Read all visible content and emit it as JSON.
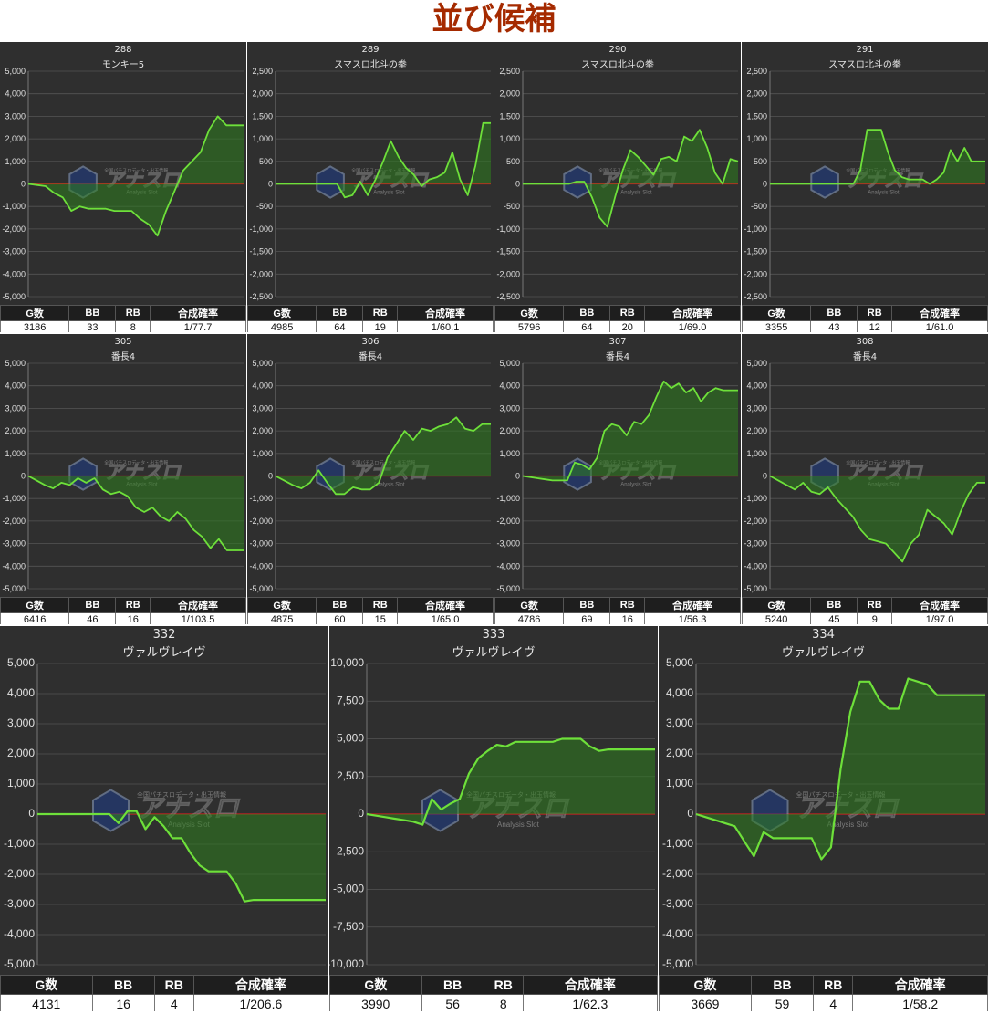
{
  "page": {
    "title": "並び候補"
  },
  "watermark": {
    "main": "アナスロ",
    "tagline": "全国パチスロデータ・出玉情報",
    "sub": "Analysis Slot"
  },
  "stat_headers": [
    "G数",
    "BB",
    "RB",
    "合成確率"
  ],
  "colors": {
    "panel_bg": "#2f2f2f",
    "line": "#6ee03a",
    "fill": "#2e7d1e",
    "zero_line": "#cc2222",
    "grid": "#555555",
    "title": "#a52a00"
  },
  "panels": [
    {
      "machine_no": "288",
      "machine_name": "モンキー5",
      "stats": {
        "games": "3186",
        "bb": "33",
        "rb": "8",
        "rate": "1/77.7"
      },
      "chart_data": {
        "type": "area",
        "ylim": [
          -5000,
          5000
        ],
        "yticks": [
          "5,000",
          "4,000",
          "3,000",
          "2,000",
          "1,000",
          "0",
          "-1,000",
          "-2,000",
          "-3,000",
          "-4,000",
          "-5,000"
        ],
        "series": [
          {
            "values": [
              0,
              -50,
              -100,
              -400,
              -600,
              -1200,
              -1000,
              -1100,
              -1100,
              -1100,
              -1200,
              -1200,
              -1200,
              -1550,
              -1800,
              -2300,
              -1200,
              -300,
              600,
              1000,
              1400,
              2400,
              3000,
              2600,
              2600,
              2600
            ]
          }
        ]
      }
    },
    {
      "machine_no": "289",
      "machine_name": "スマスロ北斗の拳",
      "stats": {
        "games": "4985",
        "bb": "64",
        "rb": "19",
        "rate": "1/60.1"
      },
      "chart_data": {
        "type": "area",
        "ylim": [
          -2500,
          2500
        ],
        "yticks": [
          "2,500",
          "2,000",
          "1,500",
          "1,000",
          "500",
          "0",
          "-500",
          "-1,000",
          "-1,500",
          "-2,000",
          "-2,500"
        ],
        "series": [
          {
            "values": [
              0,
              0,
              0,
              0,
              0,
              0,
              0,
              0,
              0,
              -300,
              -250,
              50,
              -250,
              100,
              500,
              950,
              600,
              350,
              200,
              -50,
              100,
              150,
              250,
              700,
              100,
              -250,
              400,
              1350,
              1350
            ]
          }
        ]
      }
    },
    {
      "machine_no": "290",
      "machine_name": "スマスロ北斗の拳",
      "stats": {
        "games": "5796",
        "bb": "64",
        "rb": "20",
        "rate": "1/69.0"
      },
      "chart_data": {
        "type": "area",
        "ylim": [
          -2500,
          2500
        ],
        "yticks": [
          "2,500",
          "2,000",
          "1,500",
          "1,000",
          "500",
          "0",
          "-500",
          "-1,000",
          "-1,500",
          "-2,000",
          "-2,500"
        ],
        "series": [
          {
            "values": [
              0,
              0,
              0,
              0,
              0,
              0,
              0,
              50,
              50,
              -300,
              -750,
              -950,
              -300,
              300,
              750,
              600,
              400,
              200,
              550,
              600,
              500,
              1050,
              950,
              1200,
              800,
              250,
              0,
              550,
              500
            ]
          }
        ]
      }
    },
    {
      "machine_no": "291",
      "machine_name": "スマスロ北斗の拳",
      "stats": {
        "games": "3355",
        "bb": "43",
        "rb": "12",
        "rate": "1/61.0"
      },
      "chart_data": {
        "type": "area",
        "ylim": [
          -2500,
          2500
        ],
        "yticks": [
          "2,500",
          "2,000",
          "1,500",
          "1,000",
          "500",
          "0",
          "-500",
          "-1,000",
          "-1,500",
          "-2,000",
          "-2,500"
        ],
        "series": [
          {
            "values": [
              0,
              0,
              0,
              0,
              0,
              0,
              0,
              0,
              0,
              0,
              0,
              0,
              0,
              300,
              1200,
              1200,
              1200,
              700,
              300,
              150,
              100,
              100,
              100,
              0,
              100,
              250,
              750,
              500,
              800,
              500,
              500,
              500
            ]
          }
        ]
      }
    },
    {
      "machine_no": "305",
      "machine_name": "番長4",
      "stats": {
        "games": "6416",
        "bb": "46",
        "rb": "16",
        "rate": "1/103.5"
      },
      "chart_data": {
        "type": "area",
        "ylim": [
          -5000,
          5000
        ],
        "yticks": [
          "5,000",
          "4,000",
          "3,000",
          "2,000",
          "1,000",
          "0",
          "-1,000",
          "-2,000",
          "-3,000",
          "-4,000",
          "-5,000"
        ],
        "series": [
          {
            "values": [
              0,
              -200,
              -400,
              -550,
              -300,
              -400,
              -100,
              -300,
              -100,
              -600,
              -800,
              -700,
              -900,
              -1400,
              -1600,
              -1400,
              -1800,
              -2000,
              -1600,
              -1900,
              -2400,
              -2700,
              -3200,
              -2800,
              -3300,
              -3300,
              -3300
            ]
          }
        ]
      }
    },
    {
      "machine_no": "306",
      "machine_name": "番長4",
      "stats": {
        "games": "4875",
        "bb": "60",
        "rb": "15",
        "rate": "1/65.0"
      },
      "chart_data": {
        "type": "area",
        "ylim": [
          -5000,
          5000
        ],
        "yticks": [
          "5,000",
          "4,000",
          "3,000",
          "2,000",
          "1,000",
          "0",
          "-1,000",
          "-2,000",
          "-3,000",
          "-4,000",
          "-5,000"
        ],
        "series": [
          {
            "values": [
              0,
              -200,
              -400,
              -550,
              -300,
              250,
              -300,
              -800,
              -800,
              -500,
              -600,
              -600,
              -300,
              800,
              1400,
              2000,
              1600,
              2100,
              2000,
              2200,
              2300,
              2600,
              2100,
              2000,
              2300,
              2300
            ]
          }
        ]
      }
    },
    {
      "machine_no": "307",
      "machine_name": "番長4",
      "stats": {
        "games": "4786",
        "bb": "69",
        "rb": "16",
        "rate": "1/56.3"
      },
      "chart_data": {
        "type": "area",
        "ylim": [
          -5000,
          5000
        ],
        "yticks": [
          "5,000",
          "4,000",
          "3,000",
          "2,000",
          "1,000",
          "0",
          "-1,000",
          "-2,000",
          "-3,000",
          "-4,000",
          "-5,000"
        ],
        "series": [
          {
            "values": [
              0,
              -50,
              -100,
              -150,
              -200,
              -200,
              -200,
              600,
              500,
              300,
              800,
              2000,
              2300,
              2200,
              1800,
              2400,
              2300,
              2700,
              3500,
              4200,
              3900,
              4100,
              3700,
              3900,
              3300,
              3700,
              3900,
              3800,
              3800,
              3800
            ]
          }
        ]
      }
    },
    {
      "machine_no": "308",
      "machine_name": "番長4",
      "stats": {
        "games": "5240",
        "bb": "45",
        "rb": "9",
        "rate": "1/97.0"
      },
      "chart_data": {
        "type": "area",
        "ylim": [
          -5000,
          5000
        ],
        "yticks": [
          "5,000",
          "4,000",
          "3,000",
          "2,000",
          "1,000",
          "0",
          "-1,000",
          "-2,000",
          "-3,000",
          "-4,000",
          "-5,000"
        ],
        "series": [
          {
            "values": [
              0,
              -200,
              -400,
              -600,
              -300,
              -700,
              -800,
              -500,
              -1000,
              -1400,
              -1800,
              -2400,
              -2800,
              -2900,
              -3000,
              -3400,
              -3800,
              -3000,
              -2600,
              -1500,
              -1800,
              -2100,
              -2600,
              -1600,
              -800,
              -300,
              -300
            ]
          }
        ]
      }
    },
    {
      "machine_no": "332",
      "machine_name": "ヴァルヴレイヴ",
      "stats": {
        "games": "4131",
        "bb": "16",
        "rb": "4",
        "rate": "1/206.6"
      },
      "chart_data": {
        "type": "area",
        "ylim": [
          -5000,
          5000
        ],
        "yticks": [
          "5,000",
          "4,000",
          "3,000",
          "2,000",
          "1,000",
          "0",
          "-1,000",
          "-2,000",
          "-3,000",
          "-4,000",
          "-5,000"
        ],
        "series": [
          {
            "values": [
              0,
              0,
              0,
              0,
              0,
              0,
              0,
              0,
              0,
              -300,
              100,
              100,
              -500,
              -100,
              -400,
              -800,
              -800,
              -1300,
              -1700,
              -1900,
              -1900,
              -1900,
              -2300,
              -2900,
              -2850,
              -2850,
              -2850,
              -2850,
              -2850,
              -2850,
              -2850,
              -2850,
              -2850
            ]
          }
        ]
      }
    },
    {
      "machine_no": "333",
      "machine_name": "ヴァルヴレイヴ",
      "stats": {
        "games": "3990",
        "bb": "56",
        "rb": "8",
        "rate": "1/62.3"
      },
      "chart_data": {
        "type": "area",
        "ylim": [
          -10000,
          10000
        ],
        "yticks": [
          "10,000",
          "7,500",
          "5,000",
          "2,500",
          "0",
          "-2,500",
          "-5,000",
          "-7,500",
          "-10,000"
        ],
        "series": [
          {
            "values": [
              0,
              -100,
              -200,
              -300,
              -400,
              -500,
              -700,
              1000,
              300,
              700,
              1000,
              2700,
              3700,
              4200,
              4600,
              4500,
              4800,
              4800,
              4800,
              4800,
              4800,
              5000,
              5000,
              5000,
              4500,
              4200,
              4300,
              4300,
              4300,
              4300,
              4300,
              4300
            ]
          }
        ]
      }
    },
    {
      "machine_no": "334",
      "machine_name": "ヴァルヴレイヴ",
      "stats": {
        "games": "3669",
        "bb": "59",
        "rb": "4",
        "rate": "1/58.2"
      },
      "chart_data": {
        "type": "area",
        "ylim": [
          -5000,
          5000
        ],
        "yticks": [
          "5,000",
          "4,000",
          "3,000",
          "2,000",
          "1,000",
          "0",
          "-1,000",
          "-2,000",
          "-3,000",
          "-4,000",
          "-5,000"
        ],
        "series": [
          {
            "values": [
              0,
              -100,
              -200,
              -300,
              -400,
              -900,
              -1400,
              -600,
              -800,
              -800,
              -800,
              -800,
              -800,
              -1500,
              -1100,
              1500,
              3400,
              4400,
              4400,
              3800,
              3500,
              3500,
              4500,
              4400,
              4300,
              3950,
              3950,
              3950,
              3950,
              3950,
              3950
            ]
          }
        ]
      }
    }
  ]
}
